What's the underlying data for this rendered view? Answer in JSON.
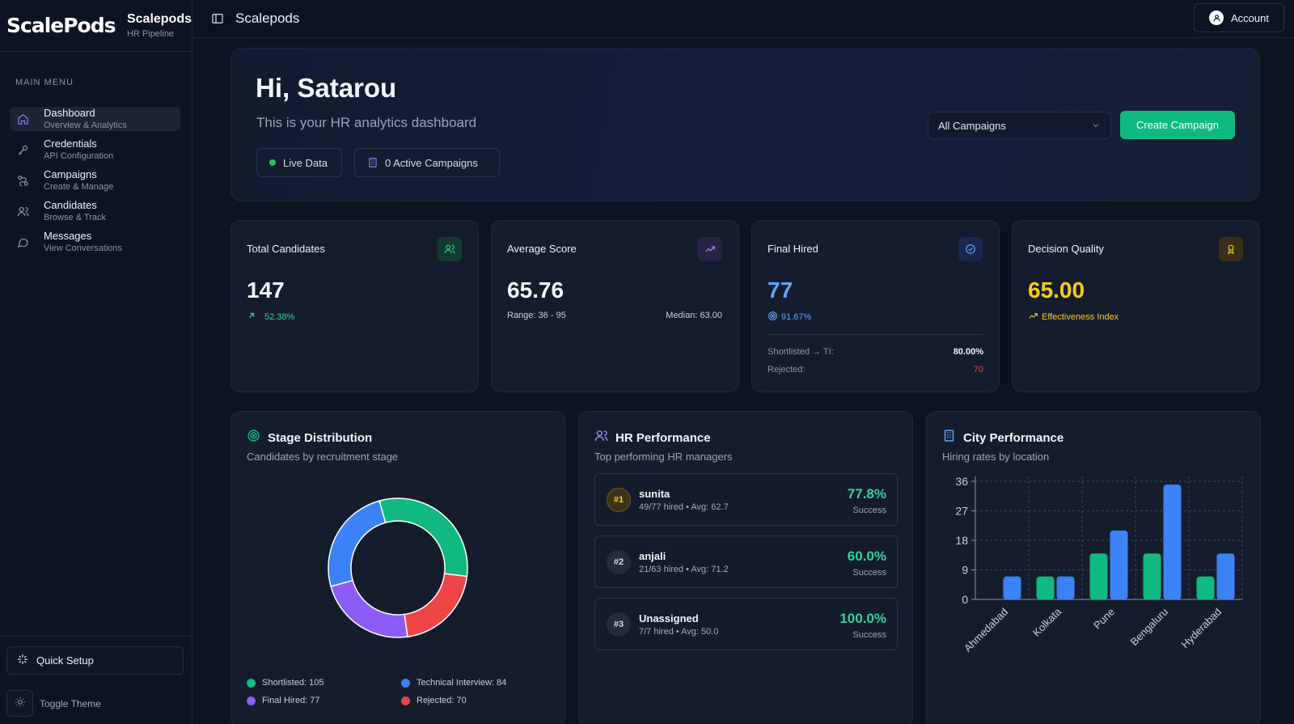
{
  "brand": {
    "logo": "ScalePods",
    "name": "Scalepods",
    "subtitle": "HR Pipeline"
  },
  "sidebar": {
    "heading": "MAIN MENU",
    "items": [
      {
        "label": "Dashboard",
        "sub": "Overview & Analytics",
        "icon": "home-icon"
      },
      {
        "label": "Credentials",
        "sub": "API Configuration",
        "icon": "key-icon"
      },
      {
        "label": "Campaigns",
        "sub": "Create & Manage",
        "icon": "route-icon"
      },
      {
        "label": "Candidates",
        "sub": "Browse & Track",
        "icon": "users-icon"
      },
      {
        "label": "Messages",
        "sub": "View Conversations",
        "icon": "message-icon"
      }
    ],
    "quick_setup": "Quick Setup",
    "toggle_theme": "Toggle Theme"
  },
  "topbar": {
    "title": "Scalepods",
    "account": "Account"
  },
  "hero": {
    "greeting": "Hi, Satarou",
    "subtitle": "This is your HR analytics dashboard",
    "live_label": "Live Data",
    "active_campaigns": "0 Active Campaigns",
    "campaign_select": "All Campaigns",
    "create_button": "Create Campaign"
  },
  "stats": {
    "total": {
      "title": "Total Candidates",
      "value": "147",
      "change": "52.38%"
    },
    "avg": {
      "title": "Average Score",
      "value": "65.76",
      "range": "Range: 36 - 95",
      "median": "Median: 63.00"
    },
    "hired": {
      "title": "Final Hired",
      "value": "77",
      "rate": "91.67%",
      "shortlisted_label": "Shortlisted → TI:",
      "shortlisted_value": "80.00%",
      "rejected_label": "Rejected:",
      "rejected_value": "70"
    },
    "quality": {
      "title": "Decision Quality",
      "value": "65.00",
      "note": "Effectiveness Index"
    }
  },
  "stage": {
    "title": "Stage Distribution",
    "subtitle": "Candidates by recruitment stage",
    "legend": [
      "Shortlisted: 105",
      "Technical Interview: 84",
      "Final Hired: 77",
      "Rejected: 70"
    ]
  },
  "hr": {
    "title": "HR Performance",
    "subtitle": "Top performing HR managers",
    "rows": [
      {
        "rank": "#1",
        "name": "sunita",
        "meta": "49/77 hired • Avg: 62.7",
        "rate": "77.8%",
        "label": "Success"
      },
      {
        "rank": "#2",
        "name": "anjali",
        "meta": "21/63 hired • Avg: 71.2",
        "rate": "60.0%",
        "label": "Success"
      },
      {
        "rank": "#3",
        "name": "Unassigned",
        "meta": "7/7 hired • Avg: 50.0",
        "rate": "100.0%",
        "label": "Success"
      }
    ]
  },
  "city": {
    "title": "City Performance",
    "subtitle": "Hiring rates by location"
  },
  "colors": {
    "green": "#10b981",
    "blue": "#3b82f6",
    "purple": "#8b5cf6",
    "red": "#ef4444",
    "yellow": "#facc15"
  },
  "chart_data": [
    {
      "type": "pie",
      "categories": [
        "Shortlisted",
        "Technical Interview",
        "Final Hired",
        "Rejected"
      ],
      "values": [
        105,
        84,
        77,
        70
      ],
      "title": "Stage Distribution",
      "legend": "bottom"
    },
    {
      "type": "bar",
      "categories": [
        "Ahmedabad",
        "Kolkata",
        "Pune",
        "Bengaluru",
        "Hyderabad"
      ],
      "series": [
        {
          "values": [
            0,
            7,
            14,
            14,
            7
          ]
        },
        {
          "values": [
            7,
            7,
            21,
            35,
            14
          ]
        }
      ],
      "yticks": [
        0,
        9,
        18,
        27,
        36
      ],
      "ylim": [
        0,
        36
      ],
      "grid": true,
      "title": "City Performance"
    }
  ]
}
